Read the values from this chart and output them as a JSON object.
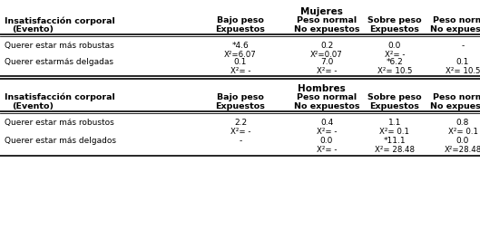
{
  "fig_w": 5.29,
  "fig_h": 2.75,
  "dpi": 100,
  "bg_color": "#ffffff",
  "text_color": "#000000",
  "fs_title": 7.5,
  "fs_header": 6.8,
  "fs_body": 6.5,
  "fs_sub": 6.2,
  "title_mujeres": "Mujeres",
  "title_hombres": "Hombres",
  "left_header_line1": "Insatisfacción corporal",
  "left_header_line2": "(Evento)",
  "col_header_row1": [
    "Bajo peso",
    "Peso normal",
    "Sobre peso",
    "Peso normal"
  ],
  "col_header_row2": [
    "Expuestos",
    "No expuestos",
    "Expuestos",
    "No expuestos"
  ],
  "mujeres_rows": [
    {
      "label": "Querer estar más robustas",
      "val1": [
        "*4.6",
        "0.2",
        "0.0",
        "-"
      ],
      "val2": [
        "X²=6.07",
        "X²=0.07",
        "X²= -",
        ""
      ]
    },
    {
      "label": "Querer estarmás delgadas",
      "val1": [
        "0.1",
        "7.0",
        "*6.2",
        "0.1"
      ],
      "val2": [
        "X²= -",
        "X²= -",
        "X²= 10.5",
        "X²= 10.5"
      ]
    }
  ],
  "hombres_rows": [
    {
      "label": "Querer estar más robustos",
      "val1": [
        "2.2",
        "0.4",
        "1.1",
        "0.8"
      ],
      "val2": [
        "X²= -",
        "X²= -",
        "X²= 0.1",
        "X²= 0.1"
      ]
    },
    {
      "label": "Querer estar más delgados",
      "val1": [
        "-",
        "0.0",
        "*11.1",
        "0.0"
      ],
      "val2": [
        "",
        "X²= -",
        "X²= 28.48",
        "X²=28.48"
      ]
    }
  ]
}
